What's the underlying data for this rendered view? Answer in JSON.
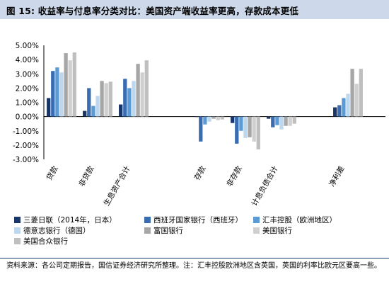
{
  "figure": {
    "title": "图 15: 收益率与付息率分类对比：美国资产端收益率更高，存款成本更低",
    "source": "资料来源：各公司定期报告，国信证券经济研究所整理。注：汇丰控股欧洲地区含英国，英国的利率比欧元区要高一些。"
  },
  "chart_data": {
    "type": "bar",
    "categories": [
      "贷款",
      "非贷款",
      "生息资产合计",
      "存款",
      "非存款",
      "计息负债合计",
      "净利差"
    ],
    "ylim": [
      -3.0,
      5.0
    ],
    "yticks": [
      -3.0,
      -2.0,
      -1.0,
      0.0,
      1.0,
      2.0,
      3.0,
      4.0,
      5.0
    ],
    "ytick_labels": [
      "-3.00%",
      "-2.00%",
      "-1.00%",
      "0.00%",
      "1.00%",
      "2.00%",
      "3.00%",
      "4.00%",
      "5.00%"
    ],
    "grid": false,
    "legend_position": "bottom",
    "series": [
      {
        "name": "三菱日联（2014年，日本）",
        "color": "#1a3668",
        "values": [
          1.3,
          0.4,
          0.85,
          0.0,
          -0.45,
          -0.15,
          0.65
        ]
      },
      {
        "name": "西班牙国家银行（西班牙）",
        "color": "#3a6db0",
        "values": [
          3.2,
          2.0,
          2.65,
          -1.75,
          -1.9,
          -0.75,
          0.8
        ]
      },
      {
        "name": "汇丰控股（欧洲地区）",
        "color": "#5b9bd5",
        "values": [
          3.45,
          0.75,
          2.0,
          -0.55,
          -1.0,
          -0.6,
          1.3
        ]
      },
      {
        "name": "德意志银行（德国）",
        "color": "#bdd7ee",
        "values": [
          3.1,
          1.45,
          2.5,
          -0.35,
          -1.5,
          -0.9,
          1.6
        ]
      },
      {
        "name": "富国银行",
        "color": "#a6a6a6",
        "values": [
          4.45,
          2.5,
          3.7,
          -0.15,
          -1.45,
          -0.65,
          3.35
        ]
      },
      {
        "name": "美国银行",
        "color": "#d0d0d0",
        "values": [
          3.95,
          2.35,
          3.1,
          -0.25,
          -1.75,
          -0.65,
          2.3
        ]
      },
      {
        "name": "美国合众银行",
        "color": "#bfbfbf",
        "values": [
          4.5,
          2.45,
          3.95,
          -0.2,
          -2.3,
          -0.5,
          3.35
        ]
      }
    ]
  }
}
